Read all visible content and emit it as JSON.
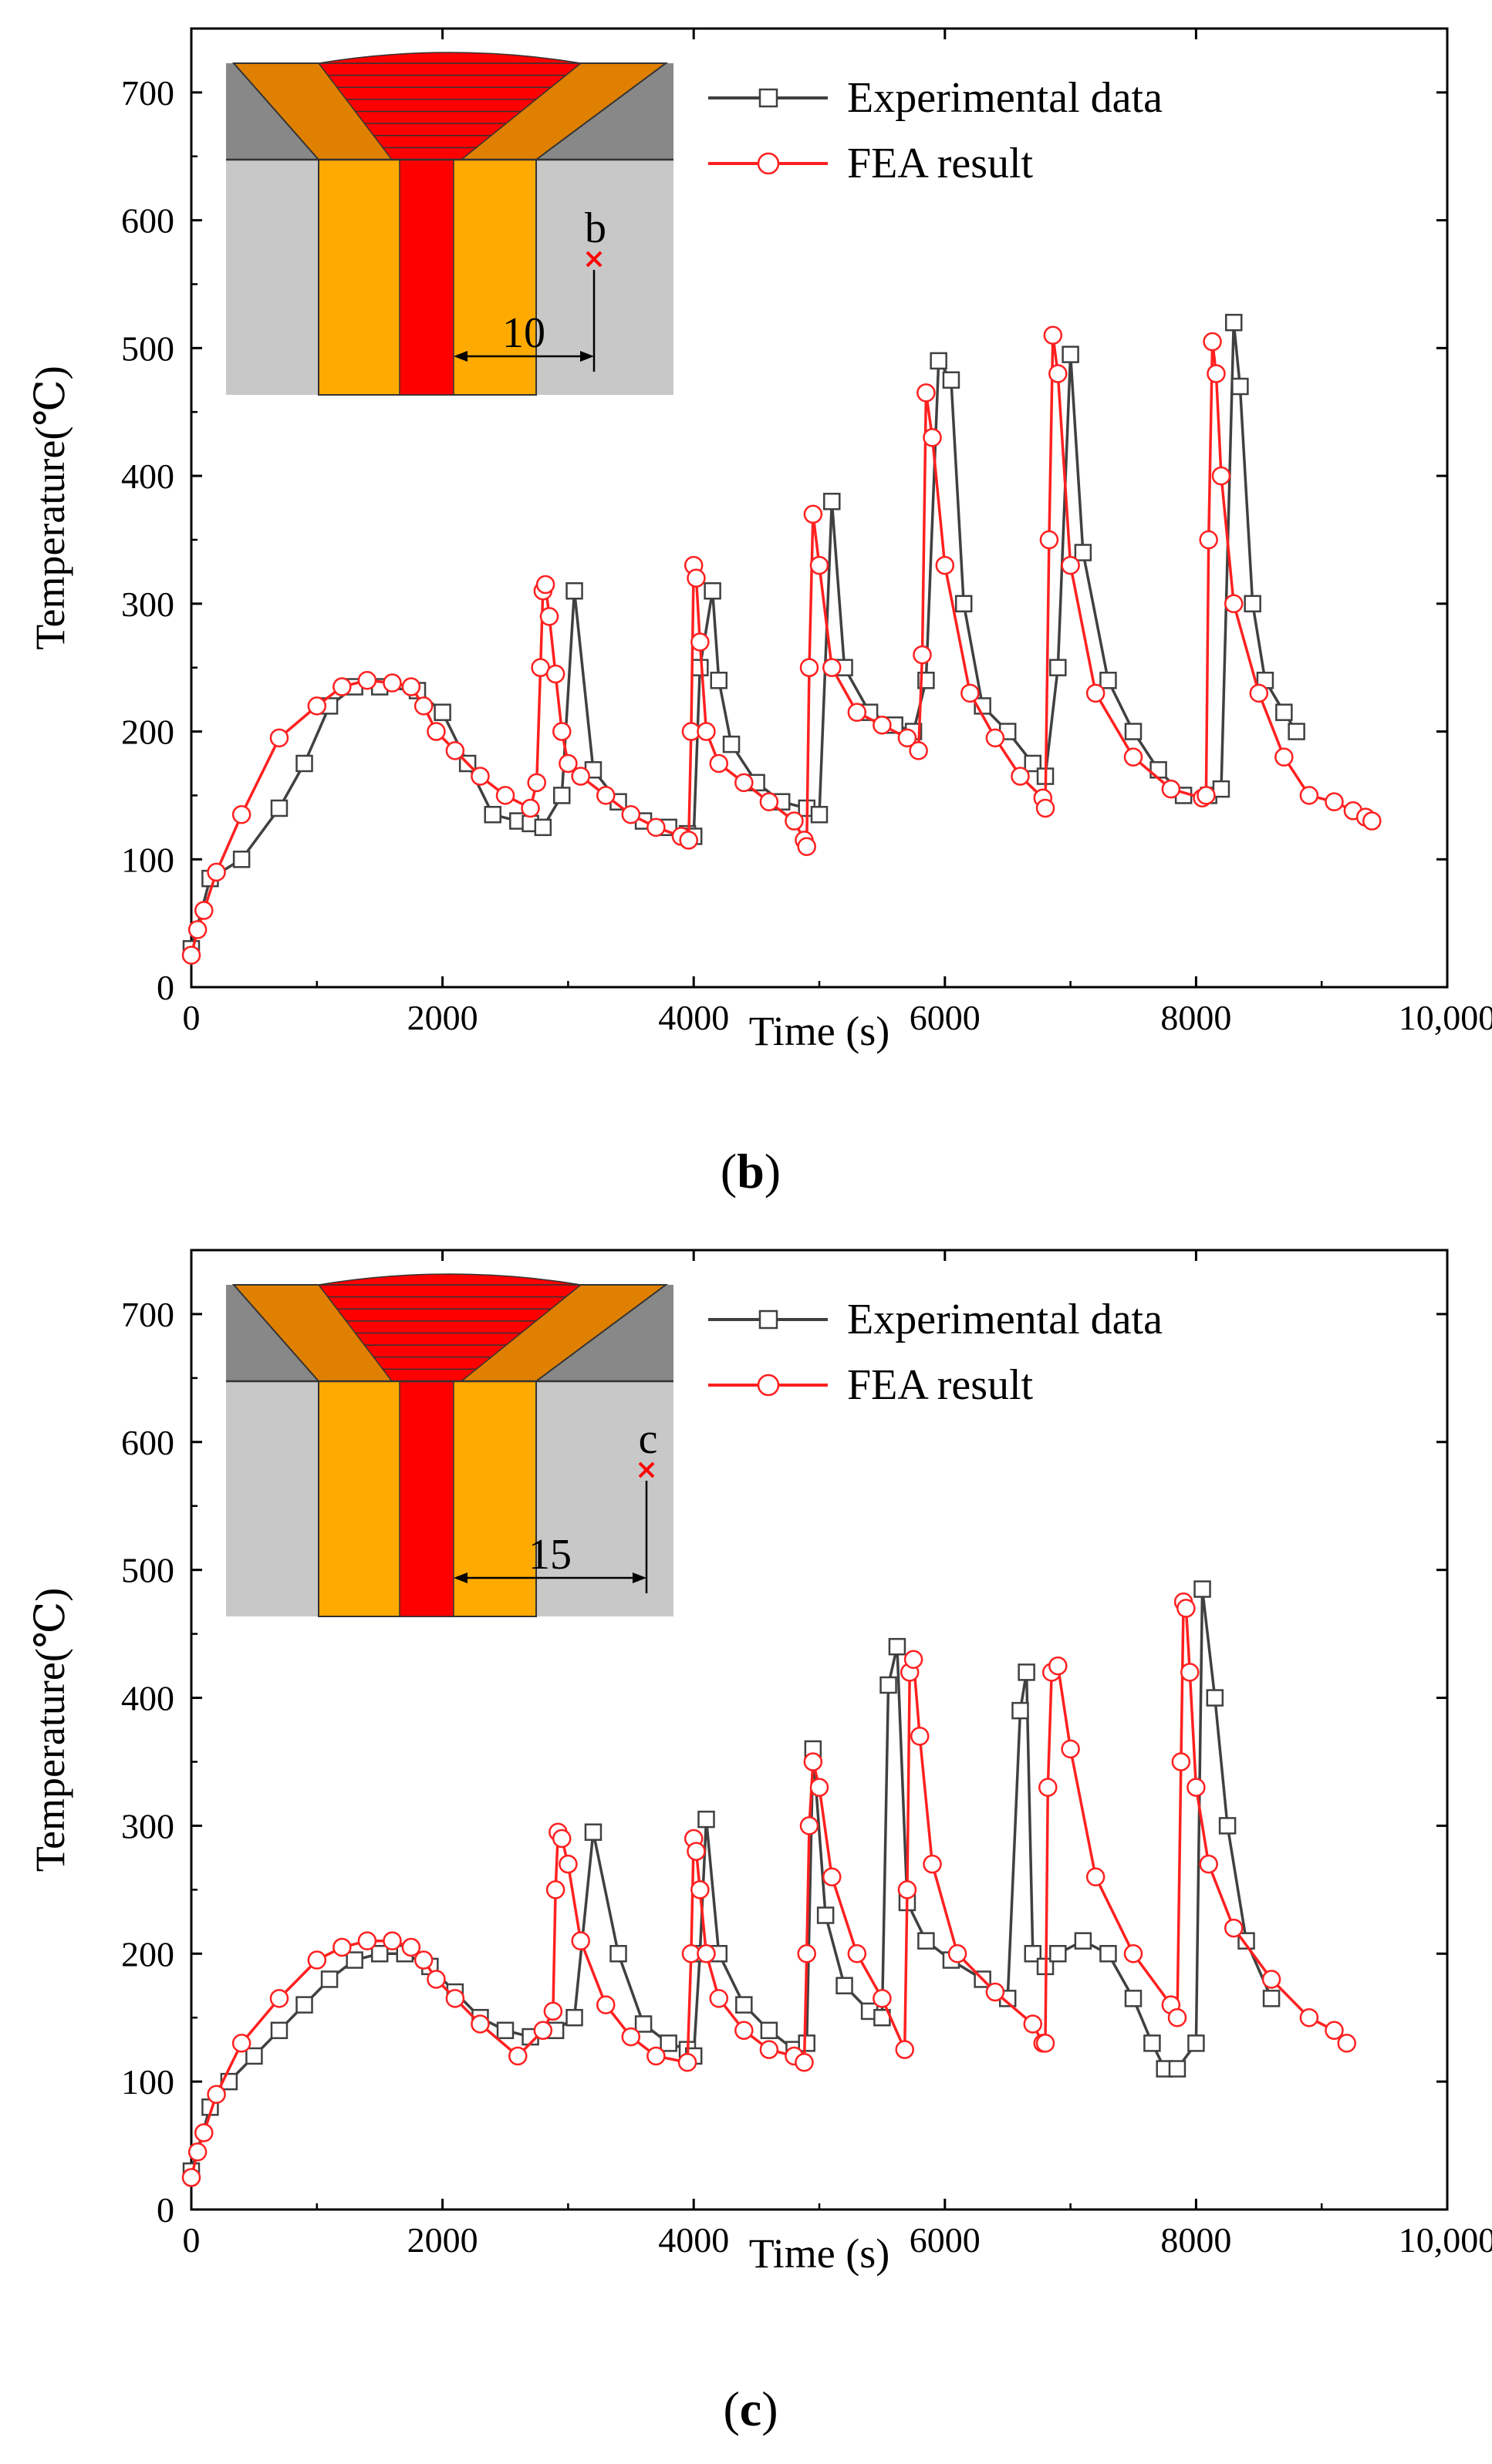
{
  "colors": {
    "experimental": "#404040",
    "fea": "#ff2020",
    "inset_base": "#c8c8c8",
    "inset_top": "#888888",
    "inset_haz": "#ffaa00",
    "inset_bevel": "#e08000",
    "inset_weld": "#ff0000",
    "marker": "#ff0000"
  },
  "chart_data": [
    {
      "type": "line",
      "panel_label": "b",
      "xlabel": "Time (s)",
      "ylabel": "Temperature(℃)",
      "xlim": [
        0,
        10000
      ],
      "ylim": [
        0,
        750
      ],
      "xticks": [
        0,
        2000,
        4000,
        6000,
        8000,
        10000
      ],
      "xtick_labels": [
        "0",
        "2000",
        "4000",
        "6000",
        "8000",
        "10,000"
      ],
      "yticks": [
        0,
        100,
        200,
        300,
        400,
        500,
        600,
        700
      ],
      "ytick_labels": [
        "0",
        "100",
        "200",
        "300",
        "400",
        "500",
        "600",
        "700"
      ],
      "legend": [
        "Experimental data",
        "FEA result"
      ],
      "inset": {
        "point_label": "b",
        "distance_label": "10"
      },
      "series": [
        {
          "name": "Experimental data",
          "marker": "square",
          "x": [
            0,
            150,
            400,
            700,
            900,
            1100,
            1300,
            1500,
            1800,
            2000,
            2200,
            2400,
            2600,
            2700,
            2800,
            2950,
            3050,
            3200,
            3400,
            3600,
            3800,
            3950,
            4000,
            4050,
            4150,
            4200,
            4300,
            4500,
            4700,
            4900,
            5000,
            5100,
            5200,
            5400,
            5600,
            5750,
            5850,
            5950,
            6050,
            6150,
            6300,
            6500,
            6700,
            6800,
            6900,
            7000,
            7100,
            7300,
            7500,
            7700,
            7900,
            8100,
            8200,
            8300,
            8350,
            8450,
            8550,
            8700,
            8800
          ],
          "y": [
            30,
            85,
            100,
            140,
            175,
            220,
            235,
            235,
            232,
            215,
            175,
            135,
            130,
            128,
            125,
            150,
            310,
            170,
            145,
            130,
            125,
            120,
            118,
            250,
            310,
            240,
            190,
            160,
            145,
            140,
            135,
            380,
            250,
            215,
            205,
            200,
            240,
            490,
            475,
            300,
            220,
            200,
            175,
            165,
            250,
            495,
            340,
            240,
            200,
            170,
            150,
            150,
            155,
            520,
            470,
            300,
            240,
            215,
            200
          ]
        },
        {
          "name": "FEA result",
          "marker": "circle",
          "x": [
            0,
            50,
            100,
            200,
            400,
            700,
            1000,
            1200,
            1400,
            1600,
            1750,
            1850,
            1950,
            2100,
            2300,
            2500,
            2700,
            2750,
            2780,
            2800,
            2820,
            2850,
            2900,
            2950,
            3000,
            3100,
            3300,
            3500,
            3700,
            3900,
            3960,
            3980,
            4000,
            4020,
            4050,
            4100,
            4200,
            4400,
            4600,
            4800,
            4880,
            4900,
            4920,
            4950,
            5000,
            5100,
            5300,
            5500,
            5700,
            5790,
            5820,
            5850,
            5900,
            6000,
            6200,
            6400,
            6600,
            6780,
            6800,
            6830,
            6860,
            6900,
            7000,
            7200,
            7500,
            7800,
            8050,
            8080,
            8100,
            8130,
            8160,
            8200,
            8300,
            8500,
            8700,
            8900,
            9100,
            9250,
            9350,
            9400
          ],
          "y": [
            25,
            45,
            60,
            90,
            135,
            195,
            220,
            235,
            240,
            238,
            235,
            220,
            200,
            185,
            165,
            150,
            140,
            160,
            250,
            310,
            315,
            290,
            245,
            200,
            175,
            165,
            150,
            135,
            125,
            118,
            115,
            200,
            330,
            320,
            270,
            200,
            175,
            160,
            145,
            130,
            115,
            110,
            250,
            370,
            330,
            250,
            215,
            205,
            195,
            185,
            260,
            465,
            430,
            330,
            230,
            195,
            165,
            148,
            140,
            350,
            510,
            480,
            330,
            230,
            180,
            155,
            148,
            150,
            350,
            505,
            480,
            400,
            300,
            230,
            180,
            150,
            145,
            138,
            133,
            130
          ]
        }
      ]
    },
    {
      "type": "line",
      "panel_label": "c",
      "xlabel": "Time (s)",
      "ylabel": "Temperature(℃)",
      "xlim": [
        0,
        10000
      ],
      "ylim": [
        0,
        750
      ],
      "xticks": [
        0,
        2000,
        4000,
        6000,
        8000,
        10000
      ],
      "xtick_labels": [
        "0",
        "2000",
        "4000",
        "6000",
        "8000",
        "10,000"
      ],
      "yticks": [
        0,
        100,
        200,
        300,
        400,
        500,
        600,
        700
      ],
      "ytick_labels": [
        "0",
        "100",
        "200",
        "300",
        "400",
        "500",
        "600",
        "700"
      ],
      "legend": [
        "Experimental data",
        "FEA result"
      ],
      "inset": {
        "point_label": "c",
        "distance_label": "15"
      },
      "series": [
        {
          "name": "Experimental data",
          "marker": "square",
          "x": [
            0,
            150,
            300,
            500,
            700,
            900,
            1100,
            1300,
            1500,
            1700,
            1900,
            2100,
            2300,
            2500,
            2700,
            2900,
            3050,
            3200,
            3400,
            3600,
            3800,
            3950,
            4000,
            4050,
            4100,
            4200,
            4400,
            4600,
            4800,
            4900,
            4950,
            5050,
            5200,
            5400,
            5500,
            5550,
            5620,
            5700,
            5850,
            6050,
            6300,
            6500,
            6600,
            6650,
            6700,
            6800,
            6900,
            7100,
            7300,
            7500,
            7650,
            7750,
            7850,
            8000,
            8050,
            8150,
            8250,
            8400,
            8600
          ],
          "y": [
            30,
            80,
            100,
            120,
            140,
            160,
            180,
            195,
            200,
            200,
            190,
            170,
            150,
            140,
            135,
            140,
            150,
            295,
            200,
            145,
            130,
            125,
            120,
            200,
            305,
            200,
            160,
            140,
            125,
            130,
            360,
            230,
            175,
            155,
            150,
            410,
            440,
            240,
            210,
            195,
            180,
            165,
            390,
            420,
            200,
            190,
            200,
            210,
            200,
            165,
            130,
            110,
            110,
            130,
            485,
            400,
            300,
            210,
            165
          ]
        },
        {
          "name": "FEA result",
          "marker": "circle",
          "x": [
            0,
            50,
            100,
            200,
            400,
            700,
            1000,
            1200,
            1400,
            1600,
            1750,
            1850,
            1950,
            2100,
            2300,
            2600,
            2800,
            2880,
            2900,
            2920,
            2950,
            3000,
            3100,
            3300,
            3500,
            3700,
            3950,
            3980,
            4000,
            4020,
            4050,
            4100,
            4200,
            4400,
            4600,
            4800,
            4880,
            4900,
            4920,
            4950,
            5000,
            5100,
            5300,
            5500,
            5680,
            5700,
            5720,
            5750,
            5800,
            5900,
            6100,
            6400,
            6700,
            6780,
            6800,
            6820,
            6850,
            6900,
            7000,
            7200,
            7500,
            7800,
            7850,
            7880,
            7900,
            7920,
            7950,
            8000,
            8100,
            8300,
            8600,
            8900,
            9100,
            9200
          ],
          "y": [
            25,
            45,
            60,
            90,
            130,
            165,
            195,
            205,
            210,
            210,
            205,
            195,
            180,
            165,
            145,
            120,
            140,
            155,
            250,
            295,
            290,
            270,
            210,
            160,
            135,
            120,
            115,
            200,
            290,
            280,
            250,
            200,
            165,
            140,
            125,
            120,
            115,
            200,
            300,
            350,
            330,
            260,
            200,
            165,
            125,
            250,
            420,
            430,
            370,
            270,
            200,
            170,
            145,
            130,
            130,
            330,
            420,
            425,
            360,
            260,
            200,
            160,
            150,
            350,
            475,
            470,
            420,
            330,
            270,
            220,
            180,
            150,
            140,
            130
          ]
        }
      ]
    }
  ]
}
